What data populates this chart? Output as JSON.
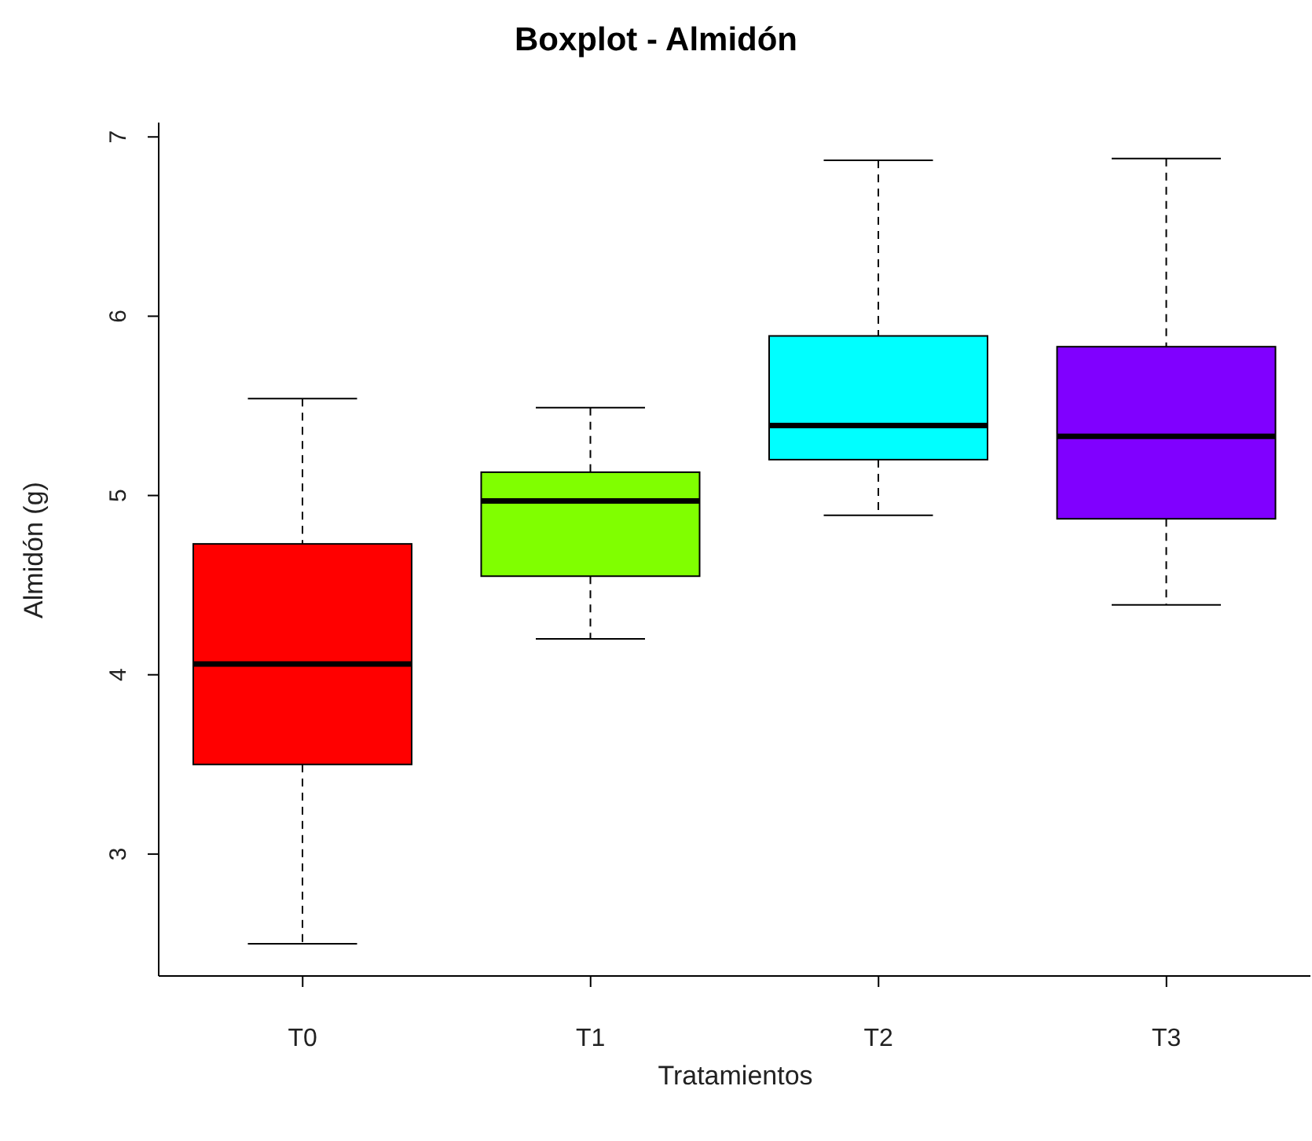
{
  "chart_data": {
    "type": "box",
    "title": "Boxplot - Almidón",
    "xlabel": "Tratamientos",
    "ylabel": "Almidón (g)",
    "categories": [
      "T0",
      "T1",
      "T2",
      "T3"
    ],
    "colors": [
      "#ff0000",
      "#80ff00",
      "#00ffff",
      "#8000ff"
    ],
    "boxes": [
      {
        "low": 2.5,
        "q1": 3.5,
        "median": 4.06,
        "q3": 4.73,
        "high": 5.54
      },
      {
        "low": 4.2,
        "q1": 4.55,
        "median": 4.97,
        "q3": 5.13,
        "high": 5.49
      },
      {
        "low": 4.89,
        "q1": 5.2,
        "median": 5.39,
        "q3": 5.89,
        "high": 6.87
      },
      {
        "low": 4.39,
        "q1": 4.87,
        "median": 5.33,
        "q3": 5.83,
        "high": 6.88
      }
    ],
    "ylim": [
      2.32,
      7.08
    ],
    "yticks": [
      3,
      4,
      5,
      6,
      7
    ],
    "grid": false,
    "legend": false
  }
}
